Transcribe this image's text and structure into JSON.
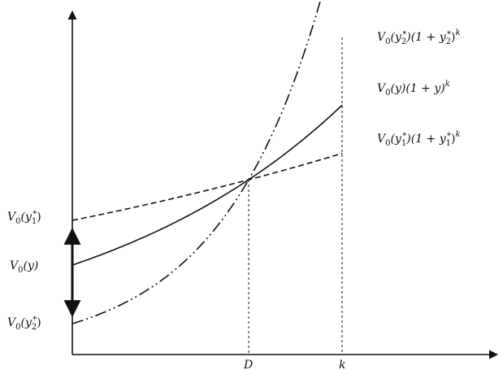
{
  "x_ticks": {
    "d": "D",
    "k": "k"
  },
  "y_labels": {
    "v0_y1": {
      "a": "V",
      "b": "0",
      "c": "(y",
      "d": "1",
      "e": "*",
      "f": ")"
    },
    "v0_y": {
      "a": "V",
      "b": "0",
      "c": "(y)"
    },
    "v0_y2": {
      "a": "V",
      "b": "0",
      "c": "(y",
      "d": "2",
      "e": "*",
      "f": ")"
    }
  },
  "curve_labels": {
    "y2": {
      "a": "V",
      "b": "0",
      "c": "(y",
      "d": "2",
      "e": "*",
      "f": ")(1 + y",
      "g": "2",
      "h": "*",
      "i": ")",
      "j": "k"
    },
    "y": {
      "a": "V",
      "b": "0",
      "c": "(y)(1 + y)",
      "d": "k"
    },
    "y1": {
      "a": "V",
      "b": "0",
      "c": "(y",
      "d": "1",
      "e": "*",
      "f": ")(1 + y",
      "g": "1",
      "h": "*",
      "i": ")",
      "j": "k"
    }
  },
  "series_styles": {
    "y2": "dash-dot-dot",
    "y": "solid",
    "y1": "dashed"
  }
}
